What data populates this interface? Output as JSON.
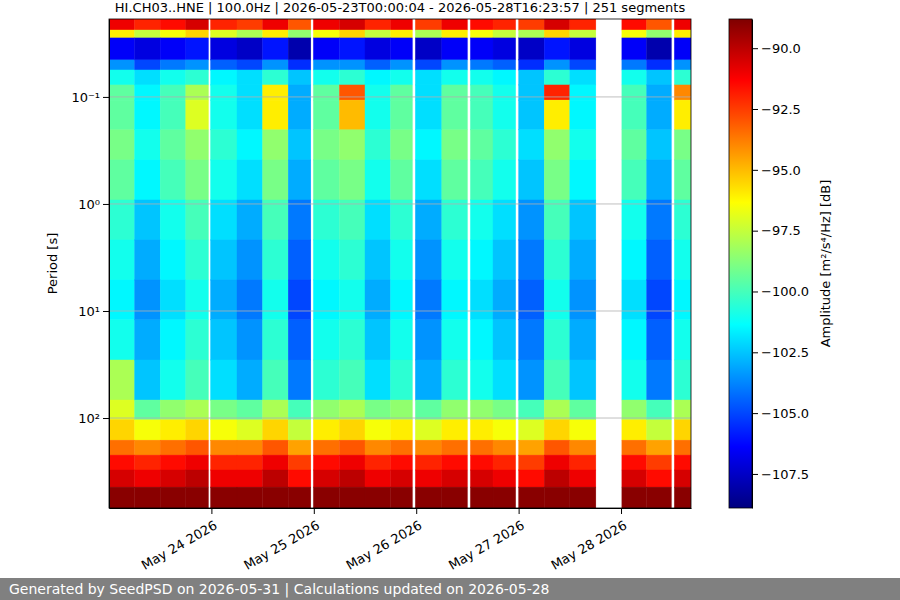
{
  "chart_data": {
    "type": "heatmap",
    "title": "HI.CH03..HNE | 100.0Hz | 2026-05-23T00:00:04 - 2026-05-28T16:23:57 | 251 segments",
    "y_label": "Period [s]",
    "colorbar_label": "Amplitude [m²/s⁴/Hz] [dB]",
    "footer": "Generated by SeedPSD on 2026-05-31 | Calculations updated on 2026-05-28",
    "log": "y",
    "grid": "y",
    "xlim": [
      "2026-05-23T00:00:04",
      "2026-05-28T16:23:57"
    ],
    "xticks": [
      {
        "value": "2026-05-24T00:00:00",
        "label": "May 24 2026"
      },
      {
        "value": "2026-05-25T00:00:00",
        "label": "May 25 2026"
      },
      {
        "value": "2026-05-26T00:00:00",
        "label": "May 26 2026"
      },
      {
        "value": "2026-05-27T00:00:00",
        "label": "May 27 2026"
      },
      {
        "value": "2026-05-28T00:00:00",
        "label": "May 28 2026"
      }
    ],
    "ylim": [
      0.0187,
      693
    ],
    "yticks": [
      {
        "value": 0.1,
        "label": "10⁻¹"
      },
      {
        "value": 1,
        "label": "10⁰"
      },
      {
        "value": 10,
        "label": "10¹"
      },
      {
        "value": 100,
        "label": "10²"
      }
    ],
    "clim": [
      -108.9,
      -88.8
    ],
    "cticks": [
      {
        "value": -90,
        "label": "−90.0"
      },
      {
        "value": -92.5,
        "label": "−92.5"
      },
      {
        "value": -95,
        "label": "−95.0"
      },
      {
        "value": -97.5,
        "label": "−97.5"
      },
      {
        "value": -100,
        "label": "−100.0"
      },
      {
        "value": -102.5,
        "label": "−102.5"
      },
      {
        "value": -105,
        "label": "−105.0"
      },
      {
        "value": -107.5,
        "label": "−107.5"
      }
    ],
    "x": [
      "2026-05-23T00:00:04",
      "2026-05-23T06:00:00",
      "2026-05-23T12:00:00",
      "2026-05-23T18:00:00",
      "2026-05-23T23:18:00",
      "2026-05-23T23:48:00",
      "2026-05-24T06:00:00",
      "2026-05-24T12:00:00",
      "2026-05-24T18:00:00",
      "2026-05-24T23:18:00",
      "2026-05-24T23:54:00",
      "2026-05-25T06:00:00",
      "2026-05-25T12:00:00",
      "2026-05-25T18:00:00",
      "2026-05-25T23:06:00",
      "2026-05-25T23:48:00",
      "2026-05-26T06:00:00",
      "2026-05-26T12:00:00",
      "2026-05-26T12:42:00",
      "2026-05-26T18:00:00",
      "2026-05-26T23:18:00",
      "2026-05-27T00:00:00",
      "2026-05-27T06:00:00",
      "2026-05-27T12:00:00",
      "2026-05-27T18:06:00",
      "2026-05-28T00:12:00",
      "2026-05-28T06:00:00",
      "2026-05-28T11:48:00",
      "2026-05-28T12:30:00",
      "2026-05-28T16:23:57"
    ],
    "y": [
      0.0187,
      0.0237,
      0.0281,
      0.0451,
      0.056,
      0.0773,
      0.107,
      0.203,
      0.388,
      0.918,
      2.17,
      5.13,
      12.1,
      28.7,
      67.9,
      104,
      161,
      222,
      306,
      442,
      693
    ],
    "z": [
      [
        -91,
        -92,
        -91.5,
        -90.5,
        null,
        -92,
        -92.5,
        -91,
        -93,
        null,
        -91,
        -90.5,
        -92,
        -91,
        null,
        -92.5,
        -91,
        null,
        -91.5,
        -92,
        null,
        -92.5,
        -90.5,
        -92,
        null,
        -91.5,
        -93,
        null,
        -91
      ],
      [
        -96,
        -97.5,
        -96.5,
        -95.5,
        null,
        -97,
        -98,
        -96,
        -98.5,
        null,
        -96.5,
        -95.5,
        -97.5,
        -96,
        null,
        -98,
        -96,
        null,
        -96.5,
        -97.5,
        null,
        -98,
        -95.5,
        -97.5,
        null,
        -96.5,
        -98.5,
        null,
        -96
      ],
      [
        -106.5,
        -107,
        -106.5,
        -106,
        null,
        -107,
        -107.5,
        -106,
        -108,
        null,
        -106.5,
        -106,
        -107,
        -106.5,
        null,
        -107.5,
        -106.5,
        null,
        -106.5,
        -107,
        null,
        -107.5,
        -106,
        -107,
        null,
        -106.5,
        -108,
        null,
        -106.5
      ],
      [
        -103.5,
        -105,
        -104,
        -103.5,
        null,
        -104.5,
        -105,
        -103.5,
        -105.5,
        null,
        -103.5,
        -103.5,
        -104.5,
        -103.5,
        null,
        -105,
        -103.5,
        null,
        -104,
        -104.5,
        null,
        -105.5,
        -103.5,
        -105,
        null,
        -104,
        -105.5,
        null,
        -103.5
      ],
      [
        -101,
        -102,
        -101,
        -100.5,
        null,
        -101.5,
        -102,
        -100.5,
        -102.5,
        null,
        -101,
        -100.5,
        -101.5,
        -101,
        null,
        -102,
        -101,
        null,
        -101,
        -101.5,
        null,
        -102.5,
        -100.5,
        -102,
        null,
        -101,
        -102.5,
        null,
        -100.5
      ],
      [
        -99.5,
        -101.5,
        -100,
        -98,
        null,
        -101,
        -102,
        -96,
        -103,
        null,
        -99.5,
        -93,
        -101,
        -99.5,
        null,
        -102,
        -99.5,
        null,
        -100,
        -101,
        null,
        -102.5,
        -92,
        -101.5,
        null,
        -100,
        -103,
        null,
        -94
      ],
      [
        -99.5,
        -101.5,
        -100,
        -97,
        null,
        -101,
        -102,
        -96,
        -103,
        null,
        -99.5,
        -95,
        -101,
        -99.5,
        null,
        -102,
        -99.5,
        null,
        -100,
        -101,
        null,
        -102.5,
        -96,
        -101.5,
        null,
        -100,
        -103,
        null,
        -96
      ],
      [
        -99,
        -101,
        -99.5,
        -98.5,
        null,
        -100.5,
        -101.5,
        -98.5,
        -102.5,
        null,
        -99,
        -98.5,
        -100.5,
        -99,
        null,
        -101.5,
        -99,
        null,
        -99.5,
        -100.5,
        null,
        -102,
        -98.5,
        -101,
        null,
        -99.5,
        -102.5,
        null,
        -99
      ],
      [
        -99.5,
        -101.5,
        -100,
        -99,
        null,
        -101,
        -102,
        -99,
        -103,
        null,
        -99.5,
        -99,
        -101,
        -99.5,
        null,
        -102,
        -99.5,
        null,
        -100,
        -101,
        null,
        -102.5,
        -99,
        -101.5,
        null,
        -100,
        -103,
        null,
        -99.5
      ],
      [
        -100.5,
        -102.5,
        -101,
        -100,
        null,
        -102,
        -103,
        -100,
        -104,
        null,
        -100.5,
        -100,
        -102,
        -100.5,
        null,
        -103,
        -100.5,
        null,
        -101,
        -102,
        null,
        -103.5,
        -100,
        -102.5,
        null,
        -101,
        -104,
        null,
        -100.5
      ],
      [
        -101,
        -103,
        -101.5,
        -100.5,
        null,
        -102.5,
        -103.5,
        -100.5,
        -104.5,
        null,
        -101,
        -100.5,
        -102.5,
        -101,
        null,
        -103.5,
        -101,
        null,
        -101.5,
        -102.5,
        null,
        -104,
        -100.5,
        -103,
        null,
        -101.5,
        -104.5,
        null,
        -101
      ],
      [
        -101.5,
        -103.5,
        -102,
        -101,
        null,
        -103,
        -104,
        -101,
        -105,
        null,
        -101.5,
        -101,
        -103,
        -101.5,
        null,
        -104,
        -101.5,
        null,
        -102,
        -103,
        null,
        -104.5,
        -101,
        -103.5,
        null,
        -102,
        -105,
        null,
        -101.5
      ],
      [
        -101,
        -103,
        -101.5,
        -100.5,
        null,
        -102.5,
        -103.5,
        -100.5,
        -104.5,
        null,
        -101,
        -100.5,
        -102.5,
        -101,
        null,
        -103.5,
        -101,
        null,
        -101.5,
        -102.5,
        null,
        -104,
        -100.5,
        -103,
        null,
        -101.5,
        -104.5,
        null,
        -101
      ],
      [
        -98,
        -102.5,
        -101,
        -100,
        null,
        -102,
        -103,
        -100,
        -104,
        null,
        -100.5,
        -100,
        -102,
        -100.5,
        null,
        -103,
        -100.5,
        null,
        -101,
        -102,
        null,
        -103.5,
        -100,
        -102.5,
        null,
        -101,
        -104,
        null,
        -100.5
      ],
      [
        -97,
        -99.5,
        -98.5,
        -98,
        null,
        -99,
        -99.5,
        -98,
        -100,
        null,
        -98.5,
        -98,
        -99,
        -98.5,
        null,
        -99.5,
        -98.5,
        null,
        -98.5,
        -99,
        null,
        -100,
        -98,
        -99.5,
        null,
        -98.5,
        -100,
        null,
        -98
      ],
      [
        -95.5,
        -96.5,
        -96,
        -95.5,
        null,
        -96.5,
        -97,
        -95.5,
        -97.5,
        null,
        -96,
        -95.5,
        -96.5,
        -96,
        null,
        -97,
        -96,
        null,
        -96,
        -96.5,
        null,
        -97,
        -95.5,
        -96.5,
        null,
        -96,
        -97.5,
        null,
        -95.5
      ],
      [
        -93.5,
        -94,
        -93.5,
        -93,
        null,
        -94,
        -94,
        -93,
        -94.5,
        null,
        -93.5,
        -93,
        -94,
        -93.5,
        null,
        -94,
        -93.5,
        null,
        -93.5,
        -94,
        null,
        -94.5,
        -93,
        -94,
        null,
        -93.5,
        -94.5,
        null,
        -93.5
      ],
      [
        -91.5,
        -92,
        -91.5,
        -91,
        null,
        -92,
        -92,
        -91,
        -92.5,
        null,
        -91.5,
        -91,
        -92,
        -91.5,
        null,
        -92,
        -91.5,
        null,
        -91.5,
        -92,
        null,
        -92.5,
        -91,
        -92,
        null,
        -91.5,
        -92.5,
        null,
        -91.5
      ],
      [
        -90.5,
        -91,
        -90.5,
        -90,
        null,
        -91,
        -91,
        -90,
        -91.5,
        null,
        -90.5,
        -90,
        -91,
        -90.5,
        null,
        -91,
        -90.5,
        null,
        -90.5,
        -91,
        null,
        -91.5,
        -90,
        -91,
        null,
        -90.5,
        -91.5,
        null,
        -90.5
      ],
      [
        -89,
        -89,
        -89,
        -89,
        null,
        -89,
        -89,
        -89,
        -89,
        null,
        -89,
        -89,
        -89,
        -89,
        null,
        -89,
        -89,
        null,
        -89,
        -89,
        null,
        -89,
        -89,
        -89,
        null,
        -89,
        -89,
        null,
        -89
      ]
    ]
  }
}
